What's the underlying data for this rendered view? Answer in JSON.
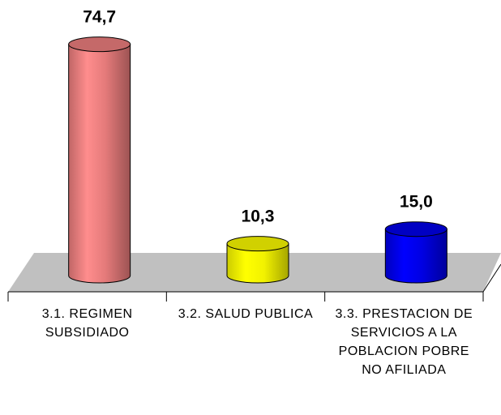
{
  "chart_data": {
    "type": "bar3d",
    "categories": [
      "3.1. REGIMEN SUBSIDIADO",
      "3.2. SALUD PUBLICA",
      "3.3. PRESTACION DE SERVICIOS A LA POBLACION POBRE NO AFILIADA"
    ],
    "values": [
      74.7,
      10.3,
      15.0
    ],
    "value_labels": [
      "74,7",
      "10,3",
      "15,0"
    ],
    "colors": [
      "#f08080",
      "#ffff00",
      "#0000ee"
    ]
  }
}
